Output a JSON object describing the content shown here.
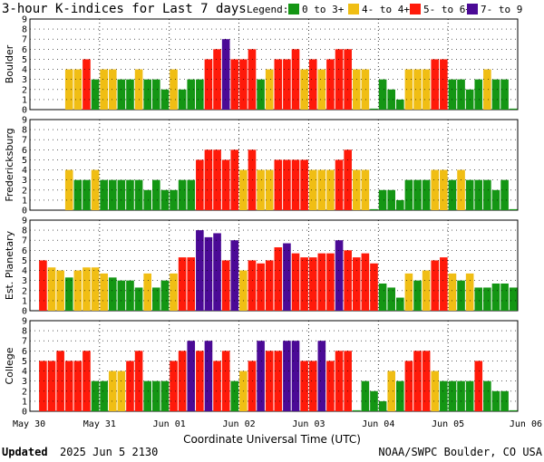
{
  "chart_data": {
    "type": "bar",
    "title": "3-hour K-indices for Last 7 days",
    "legend": {
      "label": "Legend:",
      "placement": "top-right",
      "entries": [
        {
          "label": "0 to 3+",
          "color": "#149614"
        },
        {
          "label": "4- to 4+",
          "color": "#f0be14"
        },
        {
          "label": "5- to 6+",
          "color": "#ff1a0a"
        },
        {
          "label": "7- to 9",
          "color": "#4b0a96"
        }
      ]
    },
    "xlabel": "Coordinate Universal Time (UTC)",
    "x_tick_labels": [
      "May 30",
      "May 31",
      "Jun 01",
      "Jun 02",
      "Jun 03",
      "Jun 04",
      "Jun 05",
      "Jun 06"
    ],
    "y_ticks": [
      0,
      1,
      2,
      3,
      4,
      5,
      6,
      7,
      8,
      9
    ],
    "ylim": [
      0,
      9
    ],
    "grid": true,
    "intervals_per_day": 8,
    "panels": [
      {
        "name": "Boulder",
        "values": [
          4,
          4,
          5,
          3,
          4,
          4,
          3,
          3,
          4,
          3,
          3,
          2,
          4,
          2,
          3,
          3,
          5,
          6,
          7,
          5,
          5,
          6,
          3,
          4,
          5,
          5,
          6,
          4,
          5,
          4,
          5,
          6,
          6,
          4,
          4,
          0.1,
          3,
          2,
          1,
          4,
          4,
          4,
          5,
          5,
          3,
          3,
          2,
          3,
          4,
          3,
          3,
          0.1
        ]
      },
      {
        "name": "Fredericksburg",
        "values": [
          4,
          3,
          3,
          4,
          3,
          3,
          3,
          3,
          3,
          2,
          3,
          2,
          2,
          3,
          3,
          5,
          6,
          6,
          5,
          6,
          4,
          6,
          4,
          4,
          5,
          5,
          5,
          5,
          4,
          4,
          4,
          5,
          6,
          4,
          4,
          0.1,
          2,
          2,
          1,
          3,
          3,
          3,
          4,
          4,
          3,
          4,
          3,
          3,
          3,
          2,
          3,
          0.1
        ]
      },
      {
        "name": "Est. Planetary",
        "values": [
          5,
          4.3,
          4,
          3.3,
          4,
          4.3,
          4.3,
          3.7,
          3.3,
          3,
          3,
          2.3,
          3.7,
          2.3,
          3,
          3.7,
          5.3,
          5.3,
          8,
          7.3,
          7.7,
          5,
          7,
          4,
          5,
          4.7,
          5,
          6.3,
          6.7,
          5.7,
          5.3,
          5.3,
          5.7,
          5.7,
          7,
          6,
          5.3,
          5.7,
          4.7,
          2.7,
          2.3,
          1.3,
          3.7,
          3,
          4,
          5,
          5.3,
          3.7,
          3,
          3.7,
          2.3,
          2.3,
          2.7,
          2.7,
          2.3
        ]
      },
      {
        "name": "College",
        "values": [
          5,
          5,
          6,
          5,
          5,
          6,
          3,
          3,
          4,
          4,
          5,
          6,
          3,
          3,
          3,
          5,
          6,
          7,
          6,
          7,
          5,
          6,
          3,
          4,
          5,
          7,
          6,
          6,
          7,
          7,
          5,
          5,
          7,
          5,
          6,
          6,
          0.1,
          3,
          2,
          1,
          4,
          3,
          5,
          6,
          6,
          4,
          3,
          3,
          3,
          3,
          5,
          3,
          2,
          2,
          0.1
        ]
      }
    ]
  },
  "footer": {
    "updated_label": "Updated",
    "updated_value": "2025 Jun  5 2130",
    "credit": "NOAA/SWPC Boulder, CO USA"
  }
}
